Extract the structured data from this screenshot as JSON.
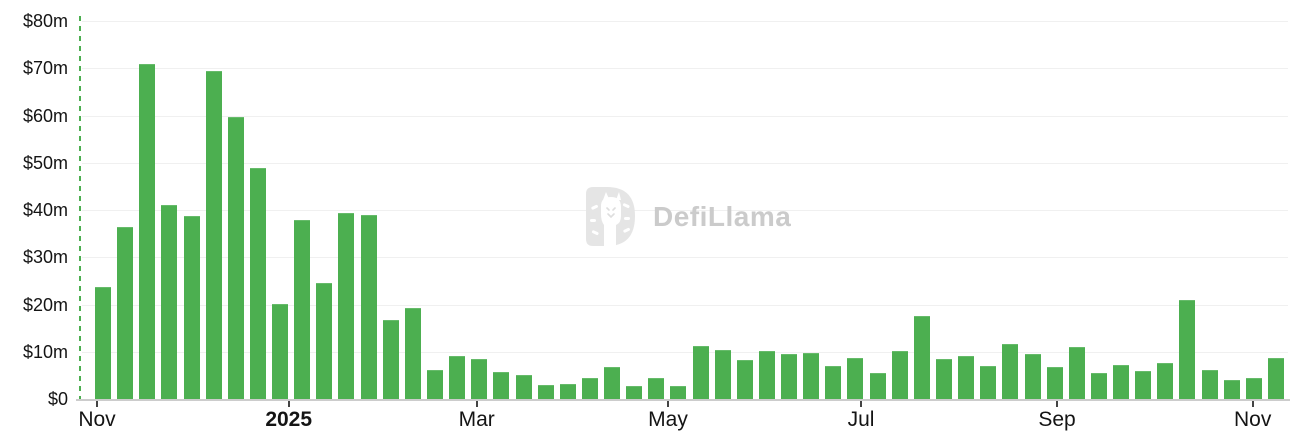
{
  "watermark": {
    "text": "DefiLlama"
  },
  "colors": {
    "bar": "#4caf50",
    "bar_edge": "#66bb6a",
    "dashed_line": "#4caf50",
    "gridline": "#f0f0f0",
    "axis_line": "#cccccc",
    "tick_mark": "#444444",
    "axis_label": "#141414",
    "watermark_text": "#cbcbcb",
    "logo_background": "#e5e5e5"
  },
  "chart_data": {
    "type": "bar",
    "title": "",
    "values_unit": "USD millions ($m)",
    "grid": true,
    "legend": "none",
    "ylim": [
      0,
      80
    ],
    "y_tick_labels": [
      "$80m",
      "$70m",
      "$60m",
      "$50m",
      "$40m",
      "$30m",
      "$20m",
      "$10m",
      "$0"
    ],
    "x_tick_labels": [
      {
        "label": "Nov",
        "bold": false
      },
      {
        "label": "2025",
        "bold": true
      },
      {
        "label": "Mar",
        "bold": false
      },
      {
        "label": "May",
        "bold": false
      },
      {
        "label": "Jul",
        "bold": false
      },
      {
        "label": "Sep",
        "bold": false
      },
      {
        "label": "Nov",
        "bold": false
      }
    ],
    "cadence": "weekly",
    "values": [
      23.6,
      36.4,
      70.9,
      41.0,
      38.7,
      69.5,
      59.6,
      48.8,
      20.2,
      37.8,
      24.6,
      39.4,
      38.9,
      16.7,
      19.3,
      6.2,
      9.1,
      8.5,
      5.7,
      5.1,
      3.0,
      3.2,
      4.4,
      6.7,
      2.7,
      4.4,
      2.8,
      11.2,
      10.4,
      8.3,
      10.2,
      9.5,
      9.7,
      7.0,
      8.6,
      5.6,
      10.2,
      17.6,
      8.5,
      9.1,
      7.0,
      11.7,
      9.5,
      6.8,
      10.9,
      5.4,
      7.3,
      6.0,
      7.7,
      20.9,
      6.1,
      4.0,
      4.5,
      8.6
    ]
  }
}
